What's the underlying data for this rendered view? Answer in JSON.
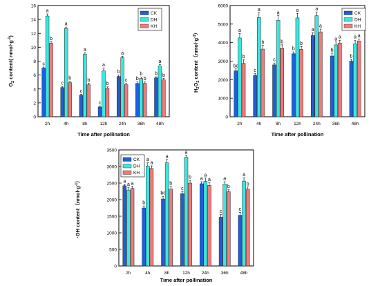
{
  "colors": {
    "CK": "#1f5fd6",
    "DH": "#3de6e0",
    "KH": "#f07a7a"
  },
  "chart_data": [
    {
      "type": "bar",
      "ylabel": "O2 content( nmol·g⁻¹)",
      "ylabel_parts": {
        "prefix": "O",
        "sub": "2",
        "suffix": " content( nmol·g",
        "sup": "-1",
        "end": ")"
      },
      "xlabel": "Time after pollination",
      "categories": [
        "2h",
        "4h",
        "8h",
        "12h",
        "24h",
        "36h",
        "48h"
      ],
      "ylim": [
        0,
        16
      ],
      "yticks": [
        "0",
        "2",
        "4",
        "6",
        "8",
        "10",
        "12",
        "14",
        "16"
      ],
      "legend": {
        "placement": "top-right",
        "entries": [
          "CK",
          "DH",
          "KH"
        ]
      },
      "series": [
        {
          "name": "CK",
          "values": [
            7.0,
            4.2,
            3.1,
            1.4,
            5.8,
            4.8,
            5.6
          ],
          "errors": [
            0.15,
            0.15,
            0.15,
            0.15,
            0.2,
            0.2,
            0.15
          ],
          "labels": [
            "c",
            "c",
            "c",
            "c",
            "b",
            "b",
            "b"
          ]
        },
        {
          "name": "DH",
          "values": [
            14.5,
            12.7,
            9.0,
            6.6,
            8.5,
            5.5,
            7.3
          ],
          "errors": [
            0.3,
            0.2,
            0.2,
            0.4,
            0.2,
            0.2,
            0.2
          ],
          "labels": [
            "a",
            "a",
            "a",
            "a",
            "a",
            "b",
            "a"
          ]
        },
        {
          "name": "KH",
          "values": [
            10.6,
            4.9,
            4.6,
            4.1,
            4.6,
            4.8,
            5.3
          ],
          "errors": [
            0.2,
            0.2,
            0.2,
            0.2,
            0.2,
            0.2,
            0.2
          ],
          "labels": [
            "b",
            "b",
            "b",
            "b",
            "c",
            "b",
            "b"
          ]
        }
      ]
    },
    {
      "type": "bar",
      "ylabel": "H2O2 content（nmol·g⁻¹）",
      "ylabel_parts": {
        "prefix": "H",
        "sub": "2",
        "mid": "O",
        "sub2": "2",
        "suffix": " content（nmol·g",
        "sup": "-1",
        "end": "）"
      },
      "xlabel": "Time after pollination",
      "categories": [
        "2h",
        "4h",
        "8h",
        "12h",
        "24h",
        "36h",
        "48h"
      ],
      "ylim": [
        0,
        6000
      ],
      "yticks": [
        "0",
        "1000",
        "2000",
        "3000",
        "4000",
        "5000",
        "6000"
      ],
      "legend": {
        "placement": "top-right",
        "entries": [
          "CK",
          "DH",
          "KH"
        ]
      },
      "series": [
        {
          "name": "CK",
          "values": [
            2480,
            2230,
            2800,
            3400,
            4380,
            3280,
            3000
          ],
          "errors": [
            100,
            100,
            100,
            100,
            150,
            150,
            100
          ],
          "labels": [
            "bc",
            "c",
            "c",
            "b",
            "a",
            "b",
            "b"
          ]
        },
        {
          "name": "DH",
          "values": [
            4250,
            5350,
            5200,
            5330,
            5450,
            3880,
            3930
          ],
          "errors": [
            250,
            250,
            250,
            250,
            200,
            150,
            200
          ],
          "labels": [
            "a",
            "a",
            "a",
            "a",
            "a",
            "a",
            "a"
          ]
        },
        {
          "name": "KH",
          "values": [
            2880,
            3650,
            3680,
            3640,
            4580,
            3980,
            4090
          ],
          "errors": [
            200,
            200,
            200,
            150,
            150,
            150,
            100
          ],
          "labels": [
            "b",
            "b",
            "b",
            "b",
            "a",
            "a",
            "a"
          ]
        }
      ]
    },
    {
      "type": "bar",
      "ylabel": "·OH content（nmol·g⁻¹）",
      "ylabel_parts": {
        "prefix": "·OH",
        "suffix": " content（nmol·g",
        "sup": "-1",
        "end": "）"
      },
      "xlabel": "Time after pollination",
      "categories": [
        "2h",
        "4h",
        "8h",
        "12h",
        "24h",
        "36h",
        "48h"
      ],
      "ylim": [
        0,
        3500
      ],
      "yticks": [
        "0",
        "500",
        "1000",
        "1500",
        "2000",
        "2500",
        "3000",
        "3500"
      ],
      "legend": {
        "placement": "top-right",
        "entries": [
          "CK",
          "DH",
          "KH"
        ]
      },
      "series": [
        {
          "name": "CK",
          "values": [
            2420,
            1750,
            2020,
            2180,
            2480,
            1470,
            1530
          ],
          "errors": [
            40,
            60,
            80,
            60,
            60,
            80,
            80
          ],
          "labels": [
            "a",
            "b",
            "bc",
            "c",
            "a",
            "c",
            "c"
          ]
        },
        {
          "name": "DH",
          "values": [
            2290,
            3010,
            3110,
            3280,
            2550,
            2470,
            2560
          ],
          "errors": [
            70,
            100,
            100,
            50,
            100,
            70,
            100
          ],
          "labels": [
            "a",
            "a",
            "a",
            "a",
            "a",
            "a",
            "a"
          ]
        },
        {
          "name": "KH",
          "values": [
            2340,
            2940,
            2320,
            2500,
            2430,
            2240,
            2320
          ],
          "errors": [
            60,
            80,
            80,
            80,
            80,
            60,
            60
          ],
          "labels": [
            "a",
            "a",
            "b",
            "b",
            "a",
            "b",
            "b"
          ]
        }
      ]
    }
  ]
}
